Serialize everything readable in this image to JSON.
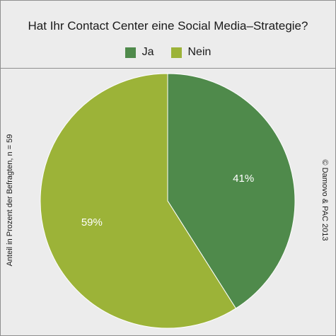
{
  "chart_data": {
    "type": "pie",
    "title": "Hat Ihr Contact Center eine Social Media–Strategie?",
    "categories": [
      "Ja",
      "Nein"
    ],
    "values": [
      41,
      59
    ],
    "value_labels": [
      "41%",
      "59%"
    ],
    "colors": [
      "#4f8a4b",
      "#9cb338"
    ],
    "legend": {
      "placement": "top",
      "entries": [
        "Ja",
        "Nein"
      ]
    },
    "ylabel": "Anteil in Prozent der Befragten, n = 59",
    "source_note": "© Damovo & PAC 2013",
    "start_angle": "12 o'clock",
    "direction": "clockwise"
  }
}
